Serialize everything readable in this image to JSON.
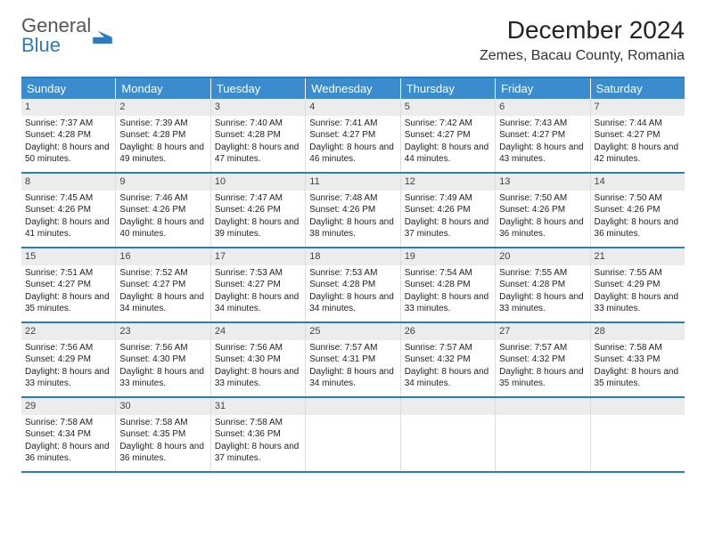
{
  "logo": {
    "line1": "General",
    "line2": "Blue"
  },
  "title": "December 2024",
  "location": "Zemes, Bacau County, Romania",
  "colors": {
    "header_bg": "#3b8bcf",
    "border": "#2b7bbf",
    "daynum_bg": "#ececec",
    "text": "#222222"
  },
  "dow": [
    "Sunday",
    "Monday",
    "Tuesday",
    "Wednesday",
    "Thursday",
    "Friday",
    "Saturday"
  ],
  "weeks": [
    [
      {
        "n": "1",
        "sr": "Sunrise: 7:37 AM",
        "ss": "Sunset: 4:28 PM",
        "dl": "Daylight: 8 hours and 50 minutes."
      },
      {
        "n": "2",
        "sr": "Sunrise: 7:39 AM",
        "ss": "Sunset: 4:28 PM",
        "dl": "Daylight: 8 hours and 49 minutes."
      },
      {
        "n": "3",
        "sr": "Sunrise: 7:40 AM",
        "ss": "Sunset: 4:28 PM",
        "dl": "Daylight: 8 hours and 47 minutes."
      },
      {
        "n": "4",
        "sr": "Sunrise: 7:41 AM",
        "ss": "Sunset: 4:27 PM",
        "dl": "Daylight: 8 hours and 46 minutes."
      },
      {
        "n": "5",
        "sr": "Sunrise: 7:42 AM",
        "ss": "Sunset: 4:27 PM",
        "dl": "Daylight: 8 hours and 44 minutes."
      },
      {
        "n": "6",
        "sr": "Sunrise: 7:43 AM",
        "ss": "Sunset: 4:27 PM",
        "dl": "Daylight: 8 hours and 43 minutes."
      },
      {
        "n": "7",
        "sr": "Sunrise: 7:44 AM",
        "ss": "Sunset: 4:27 PM",
        "dl": "Daylight: 8 hours and 42 minutes."
      }
    ],
    [
      {
        "n": "8",
        "sr": "Sunrise: 7:45 AM",
        "ss": "Sunset: 4:26 PM",
        "dl": "Daylight: 8 hours and 41 minutes."
      },
      {
        "n": "9",
        "sr": "Sunrise: 7:46 AM",
        "ss": "Sunset: 4:26 PM",
        "dl": "Daylight: 8 hours and 40 minutes."
      },
      {
        "n": "10",
        "sr": "Sunrise: 7:47 AM",
        "ss": "Sunset: 4:26 PM",
        "dl": "Daylight: 8 hours and 39 minutes."
      },
      {
        "n": "11",
        "sr": "Sunrise: 7:48 AM",
        "ss": "Sunset: 4:26 PM",
        "dl": "Daylight: 8 hours and 38 minutes."
      },
      {
        "n": "12",
        "sr": "Sunrise: 7:49 AM",
        "ss": "Sunset: 4:26 PM",
        "dl": "Daylight: 8 hours and 37 minutes."
      },
      {
        "n": "13",
        "sr": "Sunrise: 7:50 AM",
        "ss": "Sunset: 4:26 PM",
        "dl": "Daylight: 8 hours and 36 minutes."
      },
      {
        "n": "14",
        "sr": "Sunrise: 7:50 AM",
        "ss": "Sunset: 4:26 PM",
        "dl": "Daylight: 8 hours and 36 minutes."
      }
    ],
    [
      {
        "n": "15",
        "sr": "Sunrise: 7:51 AM",
        "ss": "Sunset: 4:27 PM",
        "dl": "Daylight: 8 hours and 35 minutes."
      },
      {
        "n": "16",
        "sr": "Sunrise: 7:52 AM",
        "ss": "Sunset: 4:27 PM",
        "dl": "Daylight: 8 hours and 34 minutes."
      },
      {
        "n": "17",
        "sr": "Sunrise: 7:53 AM",
        "ss": "Sunset: 4:27 PM",
        "dl": "Daylight: 8 hours and 34 minutes."
      },
      {
        "n": "18",
        "sr": "Sunrise: 7:53 AM",
        "ss": "Sunset: 4:28 PM",
        "dl": "Daylight: 8 hours and 34 minutes."
      },
      {
        "n": "19",
        "sr": "Sunrise: 7:54 AM",
        "ss": "Sunset: 4:28 PM",
        "dl": "Daylight: 8 hours and 33 minutes."
      },
      {
        "n": "20",
        "sr": "Sunrise: 7:55 AM",
        "ss": "Sunset: 4:28 PM",
        "dl": "Daylight: 8 hours and 33 minutes."
      },
      {
        "n": "21",
        "sr": "Sunrise: 7:55 AM",
        "ss": "Sunset: 4:29 PM",
        "dl": "Daylight: 8 hours and 33 minutes."
      }
    ],
    [
      {
        "n": "22",
        "sr": "Sunrise: 7:56 AM",
        "ss": "Sunset: 4:29 PM",
        "dl": "Daylight: 8 hours and 33 minutes."
      },
      {
        "n": "23",
        "sr": "Sunrise: 7:56 AM",
        "ss": "Sunset: 4:30 PM",
        "dl": "Daylight: 8 hours and 33 minutes."
      },
      {
        "n": "24",
        "sr": "Sunrise: 7:56 AM",
        "ss": "Sunset: 4:30 PM",
        "dl": "Daylight: 8 hours and 33 minutes."
      },
      {
        "n": "25",
        "sr": "Sunrise: 7:57 AM",
        "ss": "Sunset: 4:31 PM",
        "dl": "Daylight: 8 hours and 34 minutes."
      },
      {
        "n": "26",
        "sr": "Sunrise: 7:57 AM",
        "ss": "Sunset: 4:32 PM",
        "dl": "Daylight: 8 hours and 34 minutes."
      },
      {
        "n": "27",
        "sr": "Sunrise: 7:57 AM",
        "ss": "Sunset: 4:32 PM",
        "dl": "Daylight: 8 hours and 35 minutes."
      },
      {
        "n": "28",
        "sr": "Sunrise: 7:58 AM",
        "ss": "Sunset: 4:33 PM",
        "dl": "Daylight: 8 hours and 35 minutes."
      }
    ],
    [
      {
        "n": "29",
        "sr": "Sunrise: 7:58 AM",
        "ss": "Sunset: 4:34 PM",
        "dl": "Daylight: 8 hours and 36 minutes."
      },
      {
        "n": "30",
        "sr": "Sunrise: 7:58 AM",
        "ss": "Sunset: 4:35 PM",
        "dl": "Daylight: 8 hours and 36 minutes."
      },
      {
        "n": "31",
        "sr": "Sunrise: 7:58 AM",
        "ss": "Sunset: 4:36 PM",
        "dl": "Daylight: 8 hours and 37 minutes."
      },
      null,
      null,
      null,
      null
    ]
  ]
}
